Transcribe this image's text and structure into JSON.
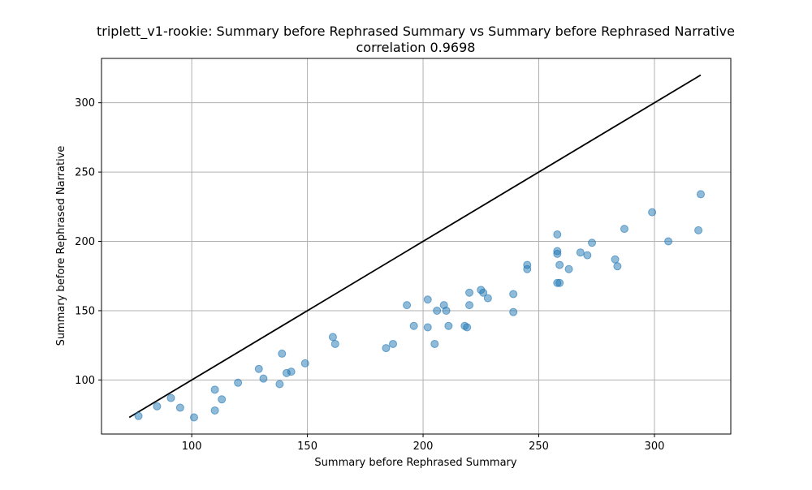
{
  "chart_data": {
    "type": "scatter",
    "title": "triplett_v1-rookie: Summary before Rephrased Summary vs Summary before Rephrased Narrative",
    "subtitle": "correlation 0.9698",
    "xlabel": "Summary before Rephrased Summary",
    "ylabel": "Summary before Rephrased Narrative",
    "xlim": [
      61,
      333
    ],
    "ylim": [
      61,
      332
    ],
    "xticks": [
      100,
      150,
      200,
      250,
      300
    ],
    "yticks": [
      100,
      150,
      200,
      250,
      300
    ],
    "grid": true,
    "colors": {
      "points": "#1f77b4",
      "reference_line": "#000000",
      "grid": "#b0b0b0"
    },
    "reference_line": {
      "x": [
        73,
        320
      ],
      "y": [
        73,
        320
      ]
    },
    "series": [
      {
        "points": [
          [
            77,
            74
          ],
          [
            85,
            81
          ],
          [
            91,
            87
          ],
          [
            95,
            80
          ],
          [
            101,
            73
          ],
          [
            110,
            93
          ],
          [
            110,
            78
          ],
          [
            113,
            86
          ],
          [
            120,
            98
          ],
          [
            129,
            108
          ],
          [
            131,
            101
          ],
          [
            138,
            97
          ],
          [
            139,
            119
          ],
          [
            141,
            105
          ],
          [
            143,
            106
          ],
          [
            149,
            112
          ],
          [
            161,
            131
          ],
          [
            162,
            126
          ],
          [
            184,
            123
          ],
          [
            187,
            126
          ],
          [
            193,
            154
          ],
          [
            196,
            139
          ],
          [
            202,
            138
          ],
          [
            202,
            158
          ],
          [
            205,
            126
          ],
          [
            206,
            150
          ],
          [
            209,
            154
          ],
          [
            210,
            150
          ],
          [
            211,
            139
          ],
          [
            218,
            139
          ],
          [
            219,
            138
          ],
          [
            220,
            163
          ],
          [
            220,
            154
          ],
          [
            225,
            165
          ],
          [
            226,
            163
          ],
          [
            228,
            159
          ],
          [
            239,
            162
          ],
          [
            239,
            149
          ],
          [
            245,
            183
          ],
          [
            245,
            180
          ],
          [
            258,
            205
          ],
          [
            258,
            193
          ],
          [
            258,
            191
          ],
          [
            258,
            170
          ],
          [
            259,
            170
          ],
          [
            259,
            183
          ],
          [
            263,
            180
          ],
          [
            268,
            192
          ],
          [
            271,
            190
          ],
          [
            273,
            199
          ],
          [
            283,
            187
          ],
          [
            284,
            182
          ],
          [
            287,
            209
          ],
          [
            299,
            221
          ],
          [
            306,
            200
          ],
          [
            319,
            208
          ],
          [
            320,
            234
          ]
        ]
      }
    ]
  }
}
